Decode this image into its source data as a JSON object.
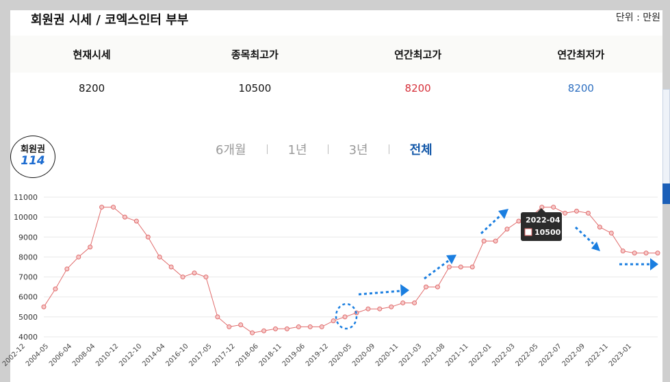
{
  "title": "회원권 시세 / 코엑스인터 부부",
  "unit_label": "단위 : 만원",
  "summary": {
    "headers": [
      "현재시세",
      "종목최고가",
      "연간최고가",
      "연간최저가"
    ],
    "values": [
      "8200",
      "10500",
      "8200",
      "8200"
    ],
    "colors": [
      "#111111",
      "#111111",
      "#d6303a",
      "#2c6ec0"
    ]
  },
  "logo": {
    "line1": "회원권",
    "line2": "114"
  },
  "periods": [
    {
      "label": "6개월",
      "active": false
    },
    {
      "label": "1년",
      "active": false
    },
    {
      "label": "3년",
      "active": false
    },
    {
      "label": "전체",
      "active": true
    }
  ],
  "tooltip": {
    "date": "2022-04",
    "value": "10500"
  },
  "chart_data": {
    "type": "line",
    "ylim": [
      4000,
      11000
    ],
    "yticks": [
      4000,
      5000,
      6000,
      7000,
      8000,
      9000,
      10000,
      11000
    ],
    "xticks": [
      "2002-12",
      "2004-05",
      "2006-04",
      "2008-04",
      "2010-12",
      "2012-10",
      "2014-04",
      "2016-10",
      "2017-05",
      "2017-12",
      "2018-06",
      "2018-11",
      "2019-06",
      "2019-12",
      "2020-05",
      "2020-09",
      "2020-11",
      "2021-03",
      "2021-08",
      "2021-11",
      "2022-01",
      "2022-03",
      "2022-05",
      "2022-07",
      "2022-09",
      "2022-11",
      "2023-01"
    ],
    "grid": true,
    "line_color": "#e06a6a",
    "values": [
      5500,
      6400,
      7400,
      8000,
      8500,
      10500,
      10500,
      10000,
      9800,
      9000,
      8000,
      7500,
      7000,
      7200,
      7000,
      5000,
      4500,
      4600,
      4200,
      4300,
      4400,
      4400,
      4500,
      4500,
      4500,
      4800,
      5000,
      5200,
      5400,
      5400,
      5500,
      5700,
      5700,
      6500,
      6500,
      7500,
      7500,
      7500,
      8800,
      8800,
      9400,
      9800,
      10000,
      10500,
      10500,
      10200,
      10300,
      10200,
      9500,
      9200,
      8300,
      8200,
      8200,
      8200
    ]
  }
}
